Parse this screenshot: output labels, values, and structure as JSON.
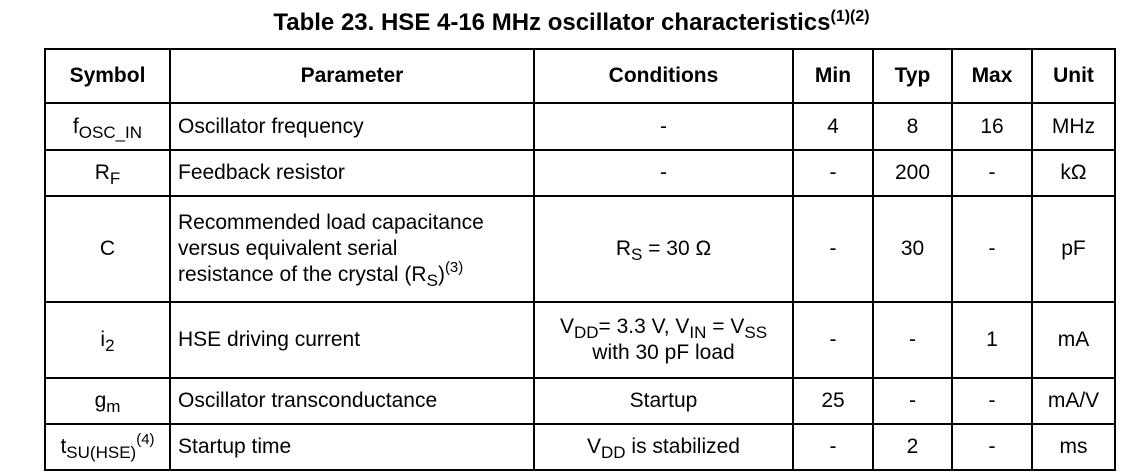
{
  "title": {
    "main": "Table 23. HSE 4-16 MHz oscillator characteristics",
    "notes": "(1)(2)"
  },
  "headers": {
    "symbol": "Symbol",
    "parameter": "Parameter",
    "conditions": "Conditions",
    "min": "Min",
    "typ": "Typ",
    "max": "Max",
    "unit": "Unit"
  },
  "rows": [
    {
      "symbol_main": "f",
      "symbol_sub": "OSC_IN",
      "parameter": "Oscillator frequency",
      "conditions": "-",
      "min": "4",
      "typ": "8",
      "max": "16",
      "unit": "MHz"
    },
    {
      "symbol_main": "R",
      "symbol_sub": "F",
      "parameter": "Feedback resistor",
      "conditions": "-",
      "min": "-",
      "typ": "200",
      "max": "-",
      "unit": "kΩ"
    },
    {
      "symbol_main": "C",
      "parameter_line1": "Recommended load capacitance",
      "parameter_line2": "versus equivalent serial",
      "parameter_line3_pre": "resistance of the crystal (R",
      "parameter_line3_sub": "S",
      "parameter_line3_post": ")",
      "parameter_note": "(3)",
      "cond_main": "R",
      "cond_sub": "S",
      "cond_rest": " = 30 Ω",
      "min": "-",
      "typ": "30",
      "max": "-",
      "unit": "pF"
    },
    {
      "symbol_main": "i",
      "symbol_sub": "2",
      "parameter": "HSE driving current",
      "cond_v1": "V",
      "cond_sub1": "DD",
      "cond_text1": "= 3.3 V, V",
      "cond_sub2": "IN",
      "cond_text2": " = V",
      "cond_sub3": "SS",
      "cond_line2": "with 30 pF load",
      "min": "-",
      "typ": "-",
      "max": "1",
      "unit": "mA"
    },
    {
      "symbol_main": "g",
      "symbol_sub": "m",
      "parameter": "Oscillator transconductance",
      "conditions": "Startup",
      "min": "25",
      "typ": "-",
      "max": "-",
      "unit": "mA/V"
    },
    {
      "symbol_main": "t",
      "symbol_sub": "SU(HSE)",
      "symbol_note": "(4)",
      "parameter": "Startup time",
      "cond_main": "V",
      "cond_sub": "DD",
      "cond_rest": " is stabilized",
      "min": "-",
      "typ": "2",
      "max": "-",
      "unit": "ms"
    }
  ]
}
